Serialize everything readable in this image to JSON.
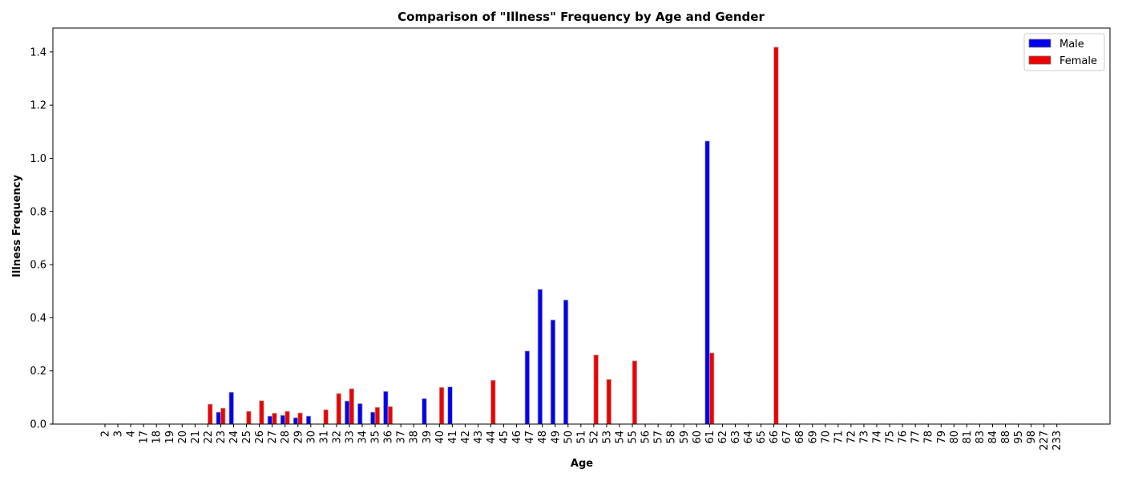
{
  "chart_data": {
    "type": "bar",
    "title": "Comparison of \"Illness\" Frequency by Age and Gender",
    "xlabel": "Age",
    "ylabel": "Illness Frequency",
    "ylim": [
      0,
      1.49
    ],
    "yticks": [
      "0.0",
      "0.2",
      "0.4",
      "0.6",
      "0.8",
      "1.0",
      "1.2",
      "1.4"
    ],
    "grid": false,
    "legend_position": "top-right",
    "categories": [
      "2",
      "3",
      "4",
      "17",
      "18",
      "19",
      "20",
      "21",
      "22",
      "23",
      "24",
      "25",
      "26",
      "27",
      "28",
      "29",
      "30",
      "31",
      "32",
      "33",
      "34",
      "35",
      "36",
      "37",
      "38",
      "39",
      "40",
      "41",
      "42",
      "43",
      "44",
      "45",
      "46",
      "47",
      "48",
      "49",
      "50",
      "51",
      "52",
      "53",
      "54",
      "55",
      "56",
      "57",
      "58",
      "59",
      "60",
      "61",
      "62",
      "63",
      "64",
      "65",
      "66",
      "67",
      "68",
      "69",
      "70",
      "71",
      "72",
      "73",
      "74",
      "75",
      "76",
      "77",
      "78",
      "79",
      "80",
      "81",
      "83",
      "84",
      "88",
      "95",
      "98",
      "227",
      "233"
    ],
    "series": [
      {
        "name": "Male",
        "color": "#0000ee",
        "values": [
          0,
          0,
          0,
          0,
          0,
          0,
          0,
          0,
          0,
          0.045,
          0.12,
          0,
          0,
          0.03,
          0.033,
          0.024,
          0.03,
          0,
          0,
          0.087,
          0.077,
          0.045,
          0.123,
          0,
          0,
          0.096,
          0,
          0.14,
          0,
          0,
          0,
          0,
          0,
          0.275,
          0.507,
          0.392,
          0.467,
          0,
          0,
          0,
          0,
          0,
          0,
          0,
          0,
          0,
          0,
          1.065,
          0,
          0,
          0,
          0,
          0,
          0,
          0,
          0,
          0,
          0,
          0,
          0,
          0,
          0,
          0,
          0,
          0,
          0,
          0,
          0,
          0,
          0,
          0,
          0,
          0,
          0,
          0
        ]
      },
      {
        "name": "Female",
        "color": "#ee0000",
        "values": [
          0,
          0,
          0,
          0,
          0,
          0,
          0,
          0,
          0.075,
          0.06,
          0,
          0.048,
          0.088,
          0.041,
          0.048,
          0.042,
          0,
          0.054,
          0.115,
          0.133,
          0,
          0.063,
          0.066,
          0,
          0,
          0,
          0.138,
          0,
          0,
          0,
          0.165,
          0,
          0,
          0,
          0,
          0,
          0,
          0,
          0.26,
          0.168,
          0,
          0.238,
          0,
          0,
          0,
          0,
          0,
          0.268,
          0,
          0,
          0,
          0,
          1.418,
          0,
          0,
          0,
          0,
          0,
          0,
          0,
          0,
          0,
          0,
          0,
          0,
          0,
          0,
          0,
          0,
          0,
          0,
          0,
          0,
          0,
          0
        ]
      }
    ]
  }
}
